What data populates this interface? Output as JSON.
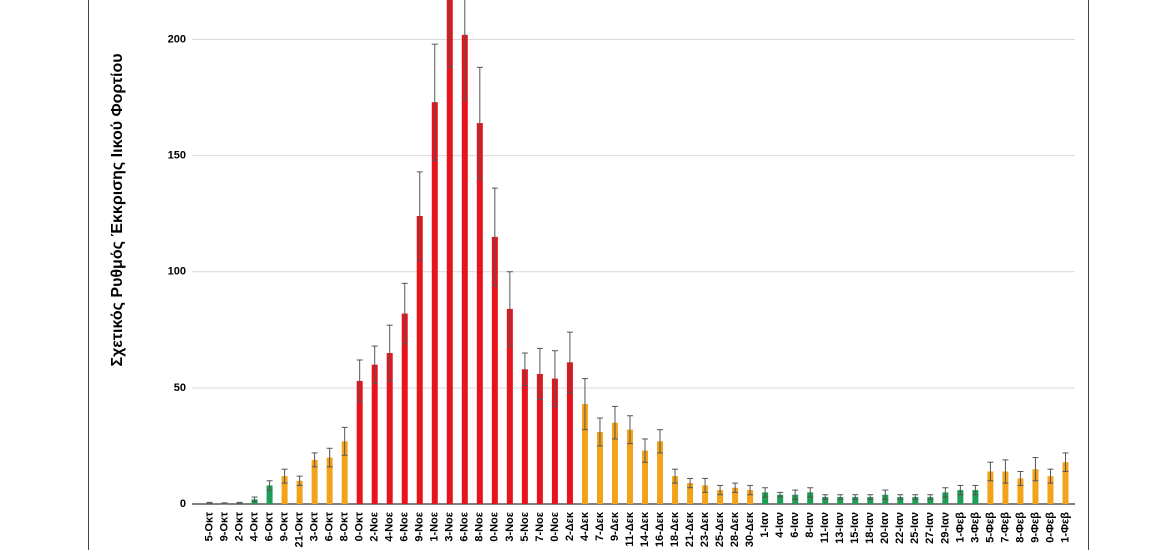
{
  "chart_data": {
    "type": "bar",
    "y_label": "Σχετικός Ρυθμός Έκκρισης Ιικού Φορτίου",
    "categories": [
      "5-Οκτ",
      "9-Οκτ",
      "2-Οκτ",
      "4-Οκτ",
      "6-Οκτ",
      "9-Οκτ",
      "21-Οκτ",
      "3-Οκτ",
      "6-Οκτ",
      "8-Οκτ",
      "0-Οκτ",
      "2-Νοε",
      "4-Νοε",
      "6-Νοε",
      "9-Νοε",
      "1-Νοε",
      "3-Νοε",
      "6-Νοε",
      "8-Νοε",
      "0-Νοε",
      "3-Νοε",
      "5-Νοε",
      "7-Νοε",
      "0-Νοε",
      "2-Δεκ",
      "4-Δεκ",
      "7-Δεκ",
      "9-Δεκ",
      "11-Δεκ",
      "14-Δεκ",
      "16-Δεκ",
      "18-Δεκ",
      "21-Δεκ",
      "23-Δεκ",
      "25-Δεκ",
      "28-Δεκ",
      "30-Δεκ",
      "1-Ιαν",
      "4-Ιαν",
      "6-Ιαν",
      "8-Ιαν",
      "11-Ιαν",
      "13-Ιαν",
      "15-Ιαν",
      "18-Ιαν",
      "20-Ιαν",
      "22-Ιαν",
      "25-Ιαν",
      "27-Ιαν",
      "29-Ιαν",
      "1-Φεβ",
      "3-Φεβ",
      "5-Φεβ",
      "7-Φεβ",
      "8-Φεβ",
      "9-Φεβ",
      "0-Φεβ",
      "1-Φεβ"
    ],
    "values": [
      0.5,
      0.3,
      0.5,
      2,
      8,
      12,
      10,
      19,
      20,
      27,
      53,
      60,
      65,
      82,
      124,
      173,
      218,
      202,
      164,
      115,
      84,
      58,
      56,
      54,
      61,
      43,
      31,
      35,
      32,
      23,
      27,
      12,
      9,
      8,
      6,
      7,
      6,
      5,
      4,
      4,
      5,
      3,
      3,
      3,
      3,
      4,
      3,
      3,
      3,
      5,
      6,
      6,
      14,
      14,
      11,
      15,
      12,
      18
    ],
    "errors": [
      0.2,
      0.2,
      0.2,
      1,
      2,
      3,
      2,
      3,
      4,
      6,
      9,
      8,
      12,
      13,
      19,
      25,
      30,
      28,
      24,
      21,
      16,
      7,
      11,
      12,
      13,
      11,
      6,
      7,
      6,
      5,
      5,
      3,
      2,
      3,
      2,
      2,
      2,
      2,
      1,
      2,
      2,
      1,
      1,
      1,
      1,
      2,
      1,
      1,
      1,
      2,
      2,
      2,
      4,
      5,
      3,
      5,
      3,
      4
    ],
    "colors": [
      "#1f9d55",
      "#1f9d55",
      "#1f9d55",
      "#1f9d55",
      "#1f9d55",
      "#f5a21b",
      "#f5a21b",
      "#f5a21b",
      "#f5a21b",
      "#f5a21b",
      "#e8141c",
      "#e8141c",
      "#e8141c",
      "#e8141c",
      "#e8141c",
      "#e8141c",
      "#e8141c",
      "#e8141c",
      "#e8141c",
      "#e8141c",
      "#e8141c",
      "#e8141c",
      "#e8141c",
      "#e8141c",
      "#e8141c",
      "#f5a21b",
      "#f5a21b",
      "#f5a21b",
      "#f5a21b",
      "#f5a21b",
      "#f5a21b",
      "#f5a21b",
      "#f5a21b",
      "#f5a21b",
      "#f5a21b",
      "#f5a21b",
      "#f5a21b",
      "#1f9d55",
      "#1f9d55",
      "#1f9d55",
      "#1f9d55",
      "#1f9d55",
      "#1f9d55",
      "#1f9d55",
      "#1f9d55",
      "#1f9d55",
      "#1f9d55",
      "#1f9d55",
      "#1f9d55",
      "#1f9d55",
      "#1f9d55",
      "#1f9d55",
      "#f5a21b",
      "#f5a21b",
      "#f5a21b",
      "#f5a21b",
      "#f5a21b",
      "#f5a21b"
    ],
    "ylim": [
      0,
      217
    ],
    "yticks": [
      0,
      50,
      100,
      150,
      200
    ],
    "grid": true
  }
}
